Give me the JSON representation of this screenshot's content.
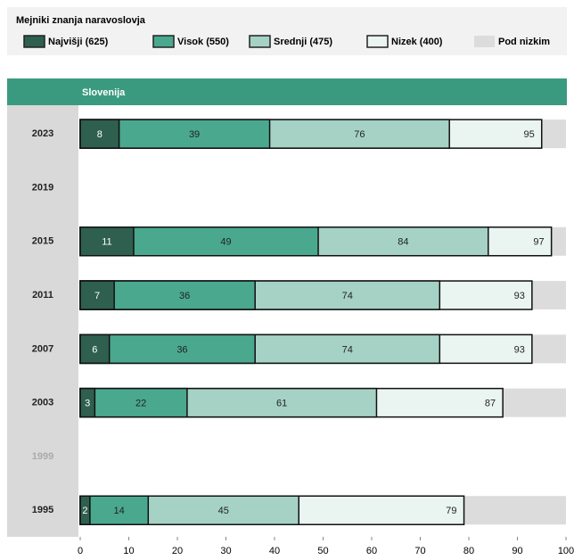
{
  "chart_data": {
    "type": "bar",
    "legend_title": "Mejniki znanja naravoslovja",
    "title": "Slovenija",
    "categories": [
      "2023",
      "2019",
      "2015",
      "2011",
      "2007",
      "2003",
      "1999",
      "1995"
    ],
    "category_label_colors": [
      "#222222",
      "#222222",
      "#222222",
      "#222222",
      "#222222",
      "#222222",
      "#aaaaaa",
      "#222222"
    ],
    "series": [
      {
        "name": "Najvišji (625)",
        "color": "#2f5f4f",
        "label_color": "#ffffff",
        "values": [
          8,
          null,
          11,
          7,
          6,
          3,
          null,
          2
        ]
      },
      {
        "name": "Visok (550)",
        "color": "#4aa88e",
        "label_color": "#222222",
        "values": [
          39,
          null,
          49,
          36,
          36,
          22,
          null,
          14
        ]
      },
      {
        "name": "Srednji (475)",
        "color": "#a5d2c5",
        "label_color": "#222222",
        "values": [
          76,
          null,
          84,
          74,
          74,
          61,
          null,
          45
        ]
      },
      {
        "name": "Nizek (400)",
        "color": "#eaf5f2",
        "label_color": "#222222",
        "values": [
          95,
          null,
          97,
          93,
          93,
          87,
          null,
          79
        ]
      },
      {
        "name": "Pod nizkim",
        "color": "#dcdcdc",
        "values": [
          100,
          null,
          100,
          100,
          100,
          100,
          null,
          100
        ]
      }
    ],
    "xlim": [
      0,
      100
    ],
    "xticks": [
      0,
      10,
      20,
      30,
      40,
      50,
      60,
      70,
      80,
      90,
      100
    ]
  }
}
